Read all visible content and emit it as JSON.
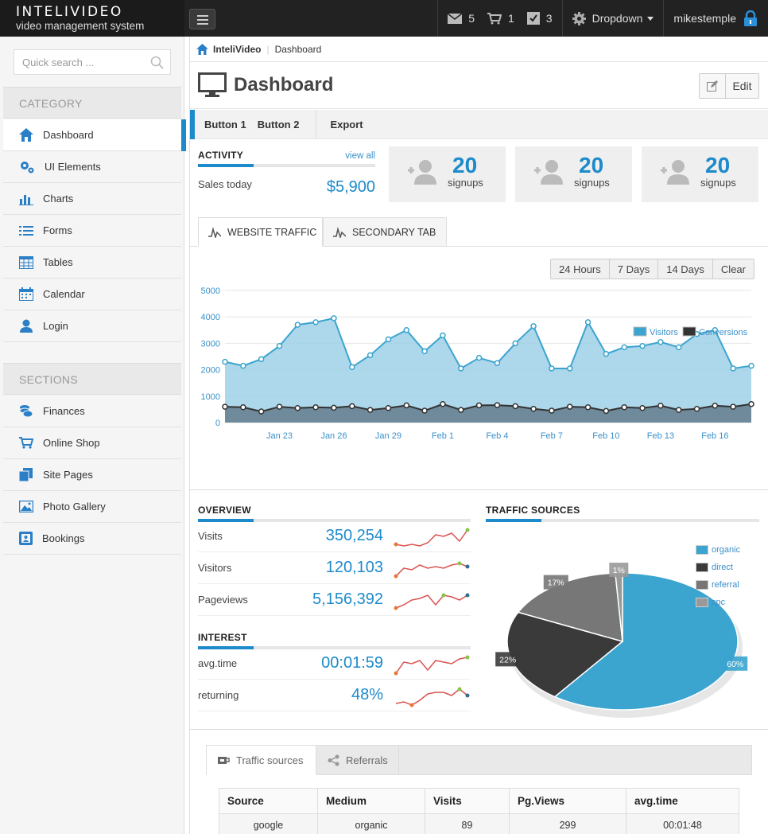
{
  "brand": {
    "title": "INTELIVIDEO",
    "subtitle": "video management system"
  },
  "topbar": {
    "mail_count": "5",
    "cart_count": "1",
    "tasks_count": "3",
    "dropdown_label": "Dropdown",
    "username": "mikestemple"
  },
  "sidebar": {
    "search_placeholder": "Quick search ...",
    "category_title": "CATEGORY",
    "category_items": [
      {
        "label": "Dashboard",
        "icon": "home-icon"
      },
      {
        "label": "UI Elements",
        "icon": "gears-icon"
      },
      {
        "label": "Charts",
        "icon": "bar-chart-icon"
      },
      {
        "label": "Forms",
        "icon": "list-icon"
      },
      {
        "label": "Tables",
        "icon": "table-icon"
      },
      {
        "label": "Calendar",
        "icon": "calendar-icon"
      },
      {
        "label": "Login",
        "icon": "user-icon"
      }
    ],
    "sections_title": "SECTIONS",
    "section_items": [
      {
        "label": "Finances",
        "icon": "coins-icon"
      },
      {
        "label": "Online Shop",
        "icon": "cart-icon"
      },
      {
        "label": "Site Pages",
        "icon": "pages-icon"
      },
      {
        "label": "Photo Gallery",
        "icon": "picture-icon"
      },
      {
        "label": "Bookings",
        "icon": "book-icon"
      }
    ]
  },
  "breadcrumb": {
    "root": "InteliVideo",
    "current": "Dashboard"
  },
  "page": {
    "title": "Dashboard",
    "edit_label": "Edit"
  },
  "buttons": {
    "b1": "Button 1",
    "b2": "Button 2",
    "b3": "Export"
  },
  "activity": {
    "title": "ACTIVITY",
    "view_all": "view all",
    "sales_label": "Sales today",
    "sales_value": "$5,900"
  },
  "stats": [
    {
      "value": "20",
      "label": "signups"
    },
    {
      "value": "20",
      "label": "signups"
    },
    {
      "value": "20",
      "label": "signups"
    }
  ],
  "tabs": {
    "tab1": "WEBSITE TRAFFIC",
    "tab2": "SECONDARY TAB"
  },
  "ranges": [
    "24 Hours",
    "7 Days",
    "14 Days",
    "Clear"
  ],
  "chart_data": {
    "type": "area",
    "series": [
      {
        "name": "Visitors",
        "color": "#3ba4cf",
        "values": [
          2300,
          2150,
          2400,
          2900,
          3700,
          3800,
          3950,
          2100,
          2550,
          3150,
          3500,
          2700,
          3300,
          2050,
          2450,
          2250,
          3000,
          3650,
          2050,
          2050,
          3800,
          2600,
          2850,
          2900,
          3050,
          2850,
          3350,
          3500,
          2050,
          2150
        ]
      },
      {
        "name": "Conversions",
        "color": "#333333",
        "values": [
          600,
          580,
          420,
          600,
          550,
          580,
          560,
          620,
          480,
          550,
          650,
          450,
          700,
          480,
          650,
          660,
          620,
          520,
          450,
          600,
          580,
          440,
          580,
          550,
          640,
          480,
          520,
          640,
          600,
          700
        ]
      }
    ],
    "x_ticks": [
      "Jan 23",
      "Jan 26",
      "Jan 29",
      "Feb 1",
      "Feb 4",
      "Feb 7",
      "Feb 10",
      "Feb 13",
      "Feb 16"
    ],
    "y_ticks": [
      "5000",
      "4000",
      "3000",
      "2000",
      "1000",
      "0"
    ],
    "ylim": [
      0,
      5000
    ],
    "legend_position": "top-right"
  },
  "overview": {
    "title": "OVERVIEW",
    "rows": [
      {
        "label": "Visits",
        "value": "350,254"
      },
      {
        "label": "Visitors",
        "value": "120,103"
      },
      {
        "label": "Pageviews",
        "value": "5,156,392"
      }
    ]
  },
  "interest": {
    "title": "INTEREST",
    "rows": [
      {
        "label": "avg.time",
        "value": "00:01:59"
      },
      {
        "label": "returning",
        "value": "48%"
      }
    ]
  },
  "traffic_sources": {
    "title": "TRAFFIC SOURCES",
    "slices": [
      {
        "name": "organic",
        "label": "60%",
        "value": 60,
        "color": "#3ba4cf"
      },
      {
        "name": "direct",
        "label": "22%",
        "value": 22,
        "color": "#3a3a3a"
      },
      {
        "name": "referral",
        "label": "17%",
        "value": 17,
        "color": "#777777"
      },
      {
        "name": "cpc",
        "label": "1%",
        "value": 1,
        "color": "#999999"
      }
    ]
  },
  "bottom_tabs": {
    "tab1": "Traffic sources",
    "tab2": "Referrals"
  },
  "table": {
    "headers": [
      "Source",
      "Medium",
      "Visits",
      "Pg.Views",
      "avg.time"
    ],
    "rows": [
      [
        "google",
        "organic",
        "89",
        "299",
        "00:01:48"
      ]
    ]
  }
}
